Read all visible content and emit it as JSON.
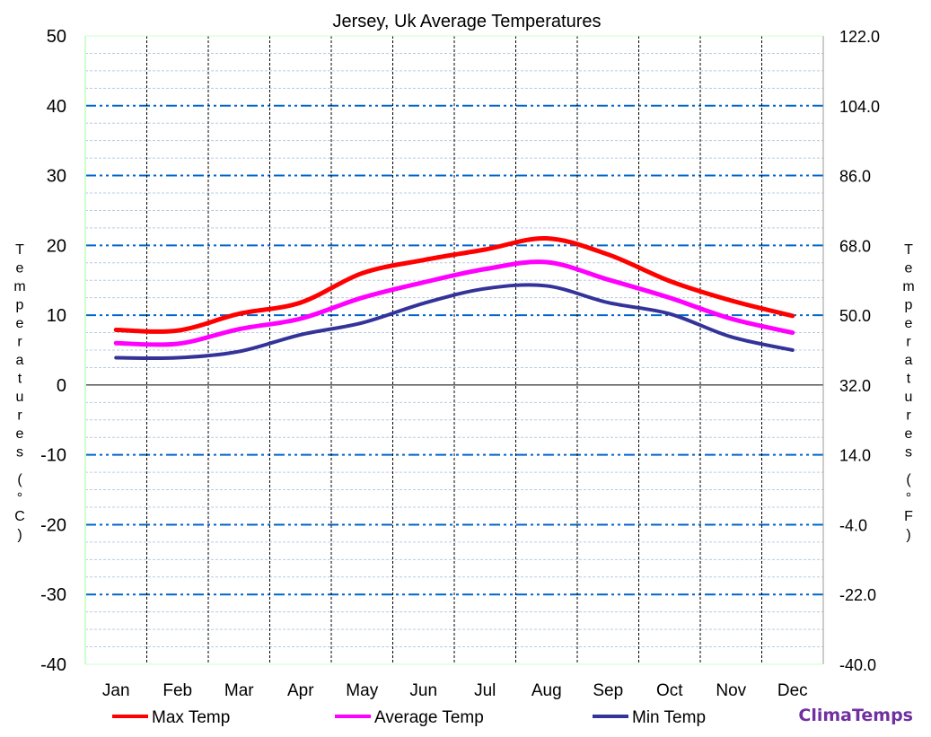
{
  "chart_data": {
    "type": "line",
    "title": "Jersey, Uk Average Temperatures",
    "categories": [
      "Jan",
      "Feb",
      "Mar",
      "Apr",
      "May",
      "Jun",
      "Jul",
      "Aug",
      "Sep",
      "Oct",
      "Nov",
      "Dec"
    ],
    "series": [
      {
        "name": "Max Temp",
        "color": "#ff0000",
        "values": [
          7.9,
          7.8,
          10.2,
          11.8,
          16.0,
          17.9,
          19.4,
          21.0,
          18.7,
          14.9,
          12.1,
          9.9
        ]
      },
      {
        "name": "Average Temp",
        "color": "#ff00ff",
        "values": [
          6.0,
          5.9,
          8.0,
          9.5,
          12.5,
          14.7,
          16.6,
          17.6,
          15.1,
          12.5,
          9.5,
          7.5
        ]
      },
      {
        "name": "Min Temp",
        "color": "#333399",
        "values": [
          3.9,
          3.9,
          4.8,
          7.2,
          8.9,
          11.7,
          13.8,
          14.2,
          11.8,
          10.2,
          6.9,
          5.0
        ]
      }
    ],
    "ylabel_left": "Temperatures (°C)",
    "ylabel_right": "Temperatures (°F)",
    "ylim": [
      -40,
      50
    ],
    "yticks_left": [
      "50",
      "40",
      "30",
      "20",
      "10",
      "0",
      "-10",
      "-20",
      "-30",
      "-40"
    ],
    "yticks_right": [
      "122.0",
      "104.0",
      "86.0",
      "68.0",
      "50.0",
      "32.0",
      "14.0",
      "-4.0",
      "-22.0",
      "-40.0"
    ],
    "grid": true,
    "legend": "bottom"
  },
  "brand": "ClimaTemps"
}
